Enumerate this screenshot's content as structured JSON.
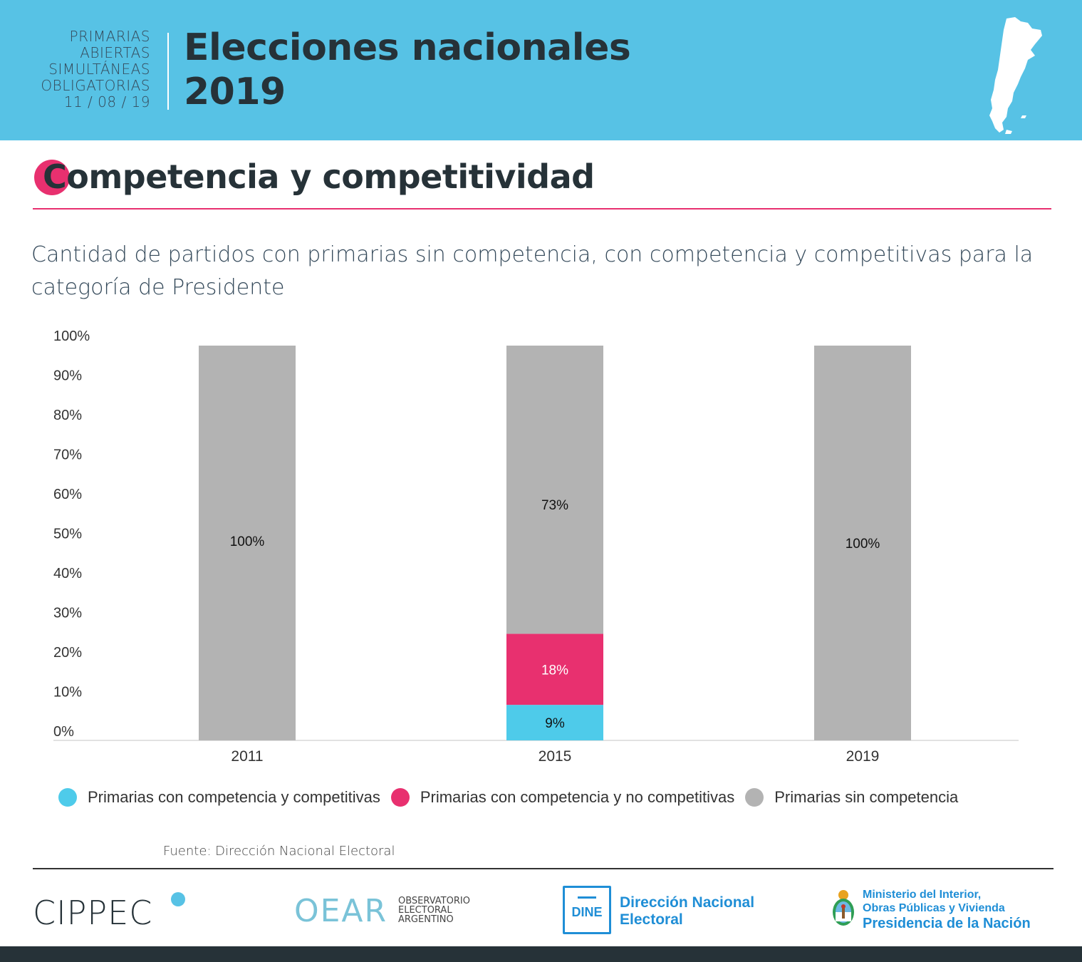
{
  "header": {
    "pas_lines": [
      "PRIMARIAS",
      "ABIERTAS",
      "SIMULTÁNEAS",
      "OBLIGATORIAS",
      "11 / 08 / 19"
    ],
    "title_line1": "Elecciones nacionales",
    "title_line2": "2019",
    "map_icon": "argentina-map-icon"
  },
  "section": {
    "title": "Competencia y competitividad"
  },
  "subtitle": "Cantidad de partidos con primarias sin competencia, con competencia y competitivas para la categoría de Presidente",
  "chart_data": {
    "type": "bar",
    "stacked": true,
    "title": "Cantidad de partidos con primarias sin competencia, con competencia y competitivas para la categoría de Presidente",
    "categories": [
      "2011",
      "2015",
      "2019"
    ],
    "series": [
      {
        "name": "Primarias con competencia y competitivas",
        "color": "#4ecbea",
        "values": [
          0,
          9,
          0
        ],
        "labels": [
          "",
          "9%",
          ""
        ]
      },
      {
        "name": "Primarias con competencia y no competitivas",
        "color": "#e8306f",
        "values": [
          0,
          18,
          0
        ],
        "labels": [
          "",
          "18%",
          ""
        ]
      },
      {
        "name": "Primarias sin competencia",
        "color": "#b3b3b3",
        "values": [
          100,
          73,
          100
        ],
        "labels": [
          "100%",
          "73%",
          "100%"
        ]
      }
    ],
    "yticks": [
      "0%",
      "10%",
      "20%",
      "30%",
      "40%",
      "50%",
      "60%",
      "70%",
      "80%",
      "90%",
      "100%"
    ],
    "ylim": [
      0,
      100
    ],
    "xlabel": "",
    "ylabel": "",
    "legend": "bottom"
  },
  "legend": [
    {
      "label": "Primarias con competencia y competitivas",
      "color": "#4ecbea"
    },
    {
      "label": "Primarias con competencia y no competitivas",
      "color": "#e8306f"
    },
    {
      "label": "Primarias sin competencia",
      "color": "#b3b3b3"
    }
  ],
  "source": "Fuente: Dirección Nacional Electoral",
  "footer": {
    "cippec": "CIPPEC",
    "oear_big": "OEAR",
    "oear_small": [
      "OBSERVATORIO",
      "ELECTORAL",
      "ARGENTINO"
    ],
    "dine_box": "DINE",
    "dine_name": [
      "Dirección Nacional",
      "Electoral"
    ],
    "ministry": [
      "Ministerio del Interior,",
      "Obras Públicas y Vivienda",
      "Presidencia de la Nación"
    ]
  }
}
